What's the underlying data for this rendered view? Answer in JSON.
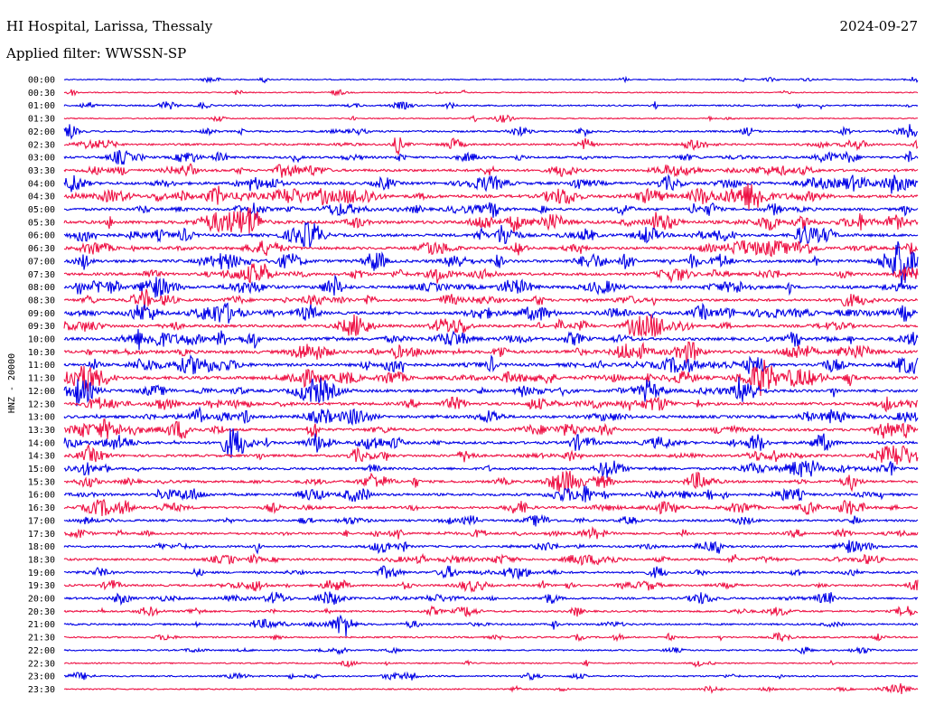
{
  "header": {
    "station": "HI Hospital, Larissa, Thessaly",
    "date": "2024-09-27",
    "filter": "Applied filter: WWSSN-SP"
  },
  "chart_data": {
    "type": "line",
    "ylabel": "HNZ - 20000",
    "colors": [
      "#0000e6",
      "#ee1144"
    ],
    "rows": [
      "00:00",
      "00:30",
      "01:00",
      "01:30",
      "02:00",
      "02:30",
      "03:00",
      "03:30",
      "04:00",
      "04:30",
      "05:00",
      "05:30",
      "06:00",
      "06:30",
      "07:00",
      "07:30",
      "08:00",
      "08:30",
      "09:00",
      "09:30",
      "10:00",
      "10:30",
      "11:00",
      "11:30",
      "12:00",
      "12:30",
      "13:00",
      "13:30",
      "14:00",
      "14:30",
      "15:00",
      "15:30",
      "16:00",
      "16:30",
      "17:00",
      "17:30",
      "18:00",
      "18:30",
      "19:00",
      "19:30",
      "20:00",
      "20:30",
      "21:00",
      "21:30",
      "22:00",
      "22:30",
      "23:00",
      "23:30"
    ],
    "activity": [
      0.15,
      0.12,
      0.3,
      0.15,
      0.45,
      0.5,
      0.6,
      0.75,
      0.85,
      0.95,
      0.8,
      1.0,
      0.9,
      0.8,
      0.9,
      0.8,
      0.85,
      0.8,
      0.9,
      0.8,
      0.9,
      0.95,
      0.9,
      1.0,
      0.9,
      0.85,
      0.85,
      0.8,
      0.8,
      0.7,
      0.7,
      0.7,
      0.75,
      0.65,
      0.6,
      0.6,
      0.55,
      0.6,
      0.6,
      0.55,
      0.55,
      0.45,
      0.45,
      0.35,
      0.3,
      0.2,
      0.3,
      0.2
    ],
    "grid": false
  }
}
